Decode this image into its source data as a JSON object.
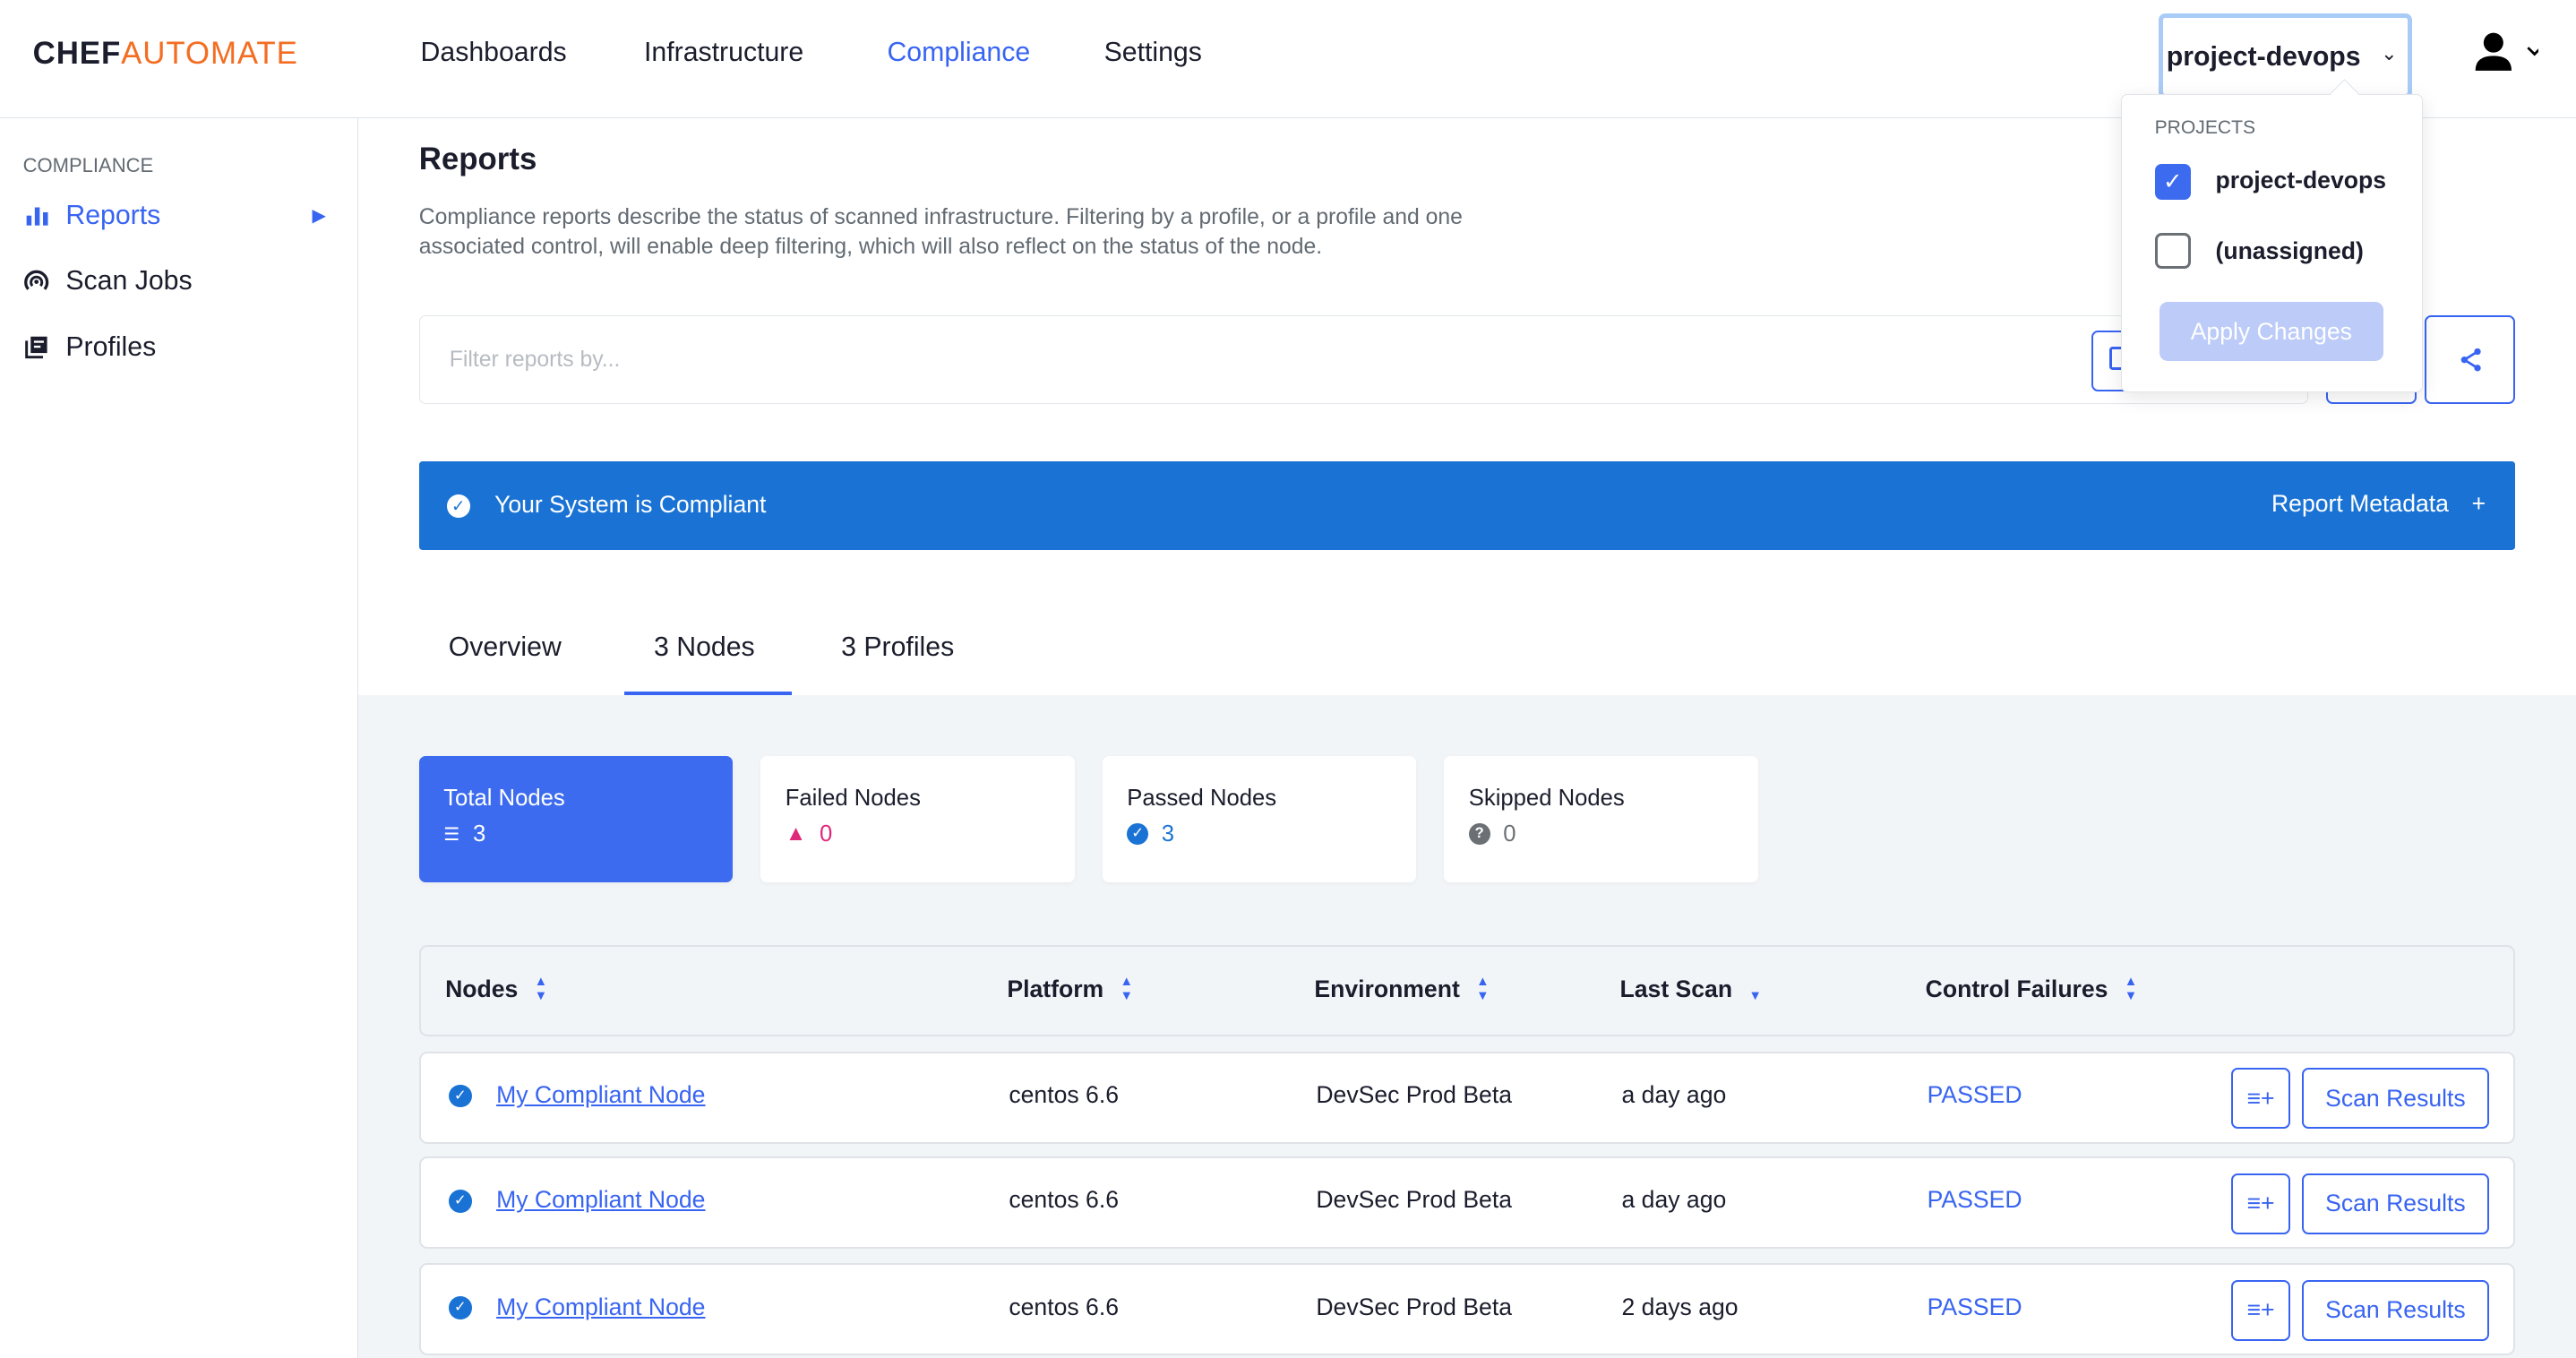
{
  "header": {
    "logo_a": "CHEF",
    "logo_b": "AUTOMATE",
    "nav": [
      "Dashboards",
      "Infrastructure",
      "Compliance",
      "Settings"
    ],
    "active_nav": "Compliance",
    "project_selector": "project-devops"
  },
  "project_dropdown": {
    "heading": "PROJECTS",
    "options": [
      {
        "label": "project-devops",
        "checked": true
      },
      {
        "label": "(unassigned)",
        "checked": false
      }
    ],
    "apply_label": "Apply Changes"
  },
  "sidebar": {
    "section": "COMPLIANCE",
    "items": [
      {
        "label": "Reports",
        "icon": "bar-chart-icon",
        "active": true
      },
      {
        "label": "Scan Jobs",
        "icon": "radar-icon"
      },
      {
        "label": "Profiles",
        "icon": "book-icon"
      }
    ]
  },
  "page": {
    "title": "Reports",
    "description": "Compliance reports describe the status of scanned infrastructure. Filtering by a profile, or a profile and one associated control, will enable deep filtering, which will also reflect on the status of the node.",
    "filter_placeholder": "Filter reports by..."
  },
  "banner": {
    "text": "Your System is Compliant",
    "metadata": "Report Metadata",
    "plus": "+",
    "color": "#1a73d4"
  },
  "tabs": [
    "Overview",
    "3 Nodes",
    "3 Profiles"
  ],
  "active_tab": "3 Nodes",
  "stats": [
    {
      "label": "Total Nodes",
      "value": "3"
    },
    {
      "label": "Failed Nodes",
      "value": "0"
    },
    {
      "label": "Passed Nodes",
      "value": "3"
    },
    {
      "label": "Skipped Nodes",
      "value": "0"
    }
  ],
  "table": {
    "columns": [
      "Nodes",
      "Platform",
      "Environment",
      "Last Scan",
      "Control Failures"
    ],
    "rows": [
      {
        "node": "My Compliant Node",
        "platform": "centos 6.6",
        "environment": "DevSec Prod Beta",
        "last_scan": "a day ago",
        "status": "PASSED",
        "action": "Scan Results"
      },
      {
        "node": "My Compliant Node",
        "platform": "centos 6.6",
        "environment": "DevSec Prod Beta",
        "last_scan": "a day ago",
        "status": "PASSED",
        "action": "Scan Results"
      },
      {
        "node": "My Compliant Node",
        "platform": "centos 6.6",
        "environment": "DevSec Prod Beta",
        "last_scan": "2 days ago",
        "status": "PASSED",
        "action": "Scan Results"
      }
    ]
  },
  "colors": {
    "accent": "#3864f2",
    "brand": "#f36d22",
    "failed": "#e0287a"
  }
}
